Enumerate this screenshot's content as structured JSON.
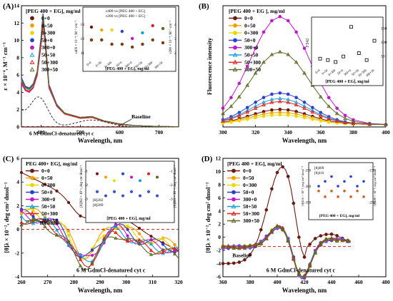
{
  "figure": {
    "panels": [
      "(A)",
      "(B)",
      "(C)",
      "(D)"
    ]
  },
  "series_styles": [
    {
      "name": "0+0",
      "color": "#6b1a10",
      "marker": "circle"
    },
    {
      "name": "0+50",
      "color": "#f5a000",
      "marker": "circle"
    },
    {
      "name": "0+300",
      "color": "#e8d800",
      "marker": "circle"
    },
    {
      "name": "50+0",
      "color": "#2a3fd0",
      "marker": "circle"
    },
    {
      "name": "300+0",
      "color": "#c018c8",
      "marker": "circle"
    },
    {
      "name": "50+50",
      "color": "#1aa0d8",
      "marker": "triangle"
    },
    {
      "name": "50+300",
      "color": "#e02020",
      "marker": "triangle"
    },
    {
      "name": "300+50",
      "color": "#5a6a22",
      "marker": "triangle"
    }
  ],
  "chart_data": [
    {
      "panel": "(A)",
      "type": "line",
      "legend_title": "[PEG 400 + EG], mg/ml",
      "xlabel": "Wavelength, nm",
      "ylabel": "ε × 10⁻⁴, M⁻¹ cm⁻¹",
      "xlim": [
        350,
        750
      ],
      "ylim": [
        0,
        14
      ],
      "xticks": [
        400,
        500,
        600,
        700
      ],
      "yticks": [
        0,
        2,
        4,
        6,
        8,
        10,
        12,
        14
      ],
      "annotations": [
        "6 M GdmCl-denatured cyt c",
        "Baseline"
      ],
      "x": [
        350,
        360,
        370,
        380,
        390,
        400,
        405,
        410,
        420,
        440,
        460,
        500,
        530,
        560,
        600,
        640,
        700,
        750
      ],
      "series": [
        {
          "name": "0+0",
          "values": [
            5.6,
            4.6,
            4.4,
            4.9,
            6.3,
            10.2,
            12.8,
            10.5,
            4.8,
            2.5,
            1.6,
            1.1,
            1.2,
            0.7,
            0.35,
            0.15,
            0.05,
            0.02
          ]
        },
        {
          "name": "0+50",
          "values": [
            5.5,
            4.5,
            4.3,
            4.8,
            6.2,
            10.0,
            12.6,
            10.3,
            4.7,
            2.5,
            1.6,
            1.1,
            1.2,
            0.7,
            0.35,
            0.15,
            0.05,
            0.02
          ]
        },
        {
          "name": "0+300",
          "values": [
            5.3,
            4.4,
            4.2,
            4.7,
            6.1,
            9.8,
            12.4,
            10.1,
            4.6,
            2.4,
            1.5,
            1.1,
            1.1,
            0.7,
            0.3,
            0.15,
            0.05,
            0.02
          ]
        },
        {
          "name": "50+0",
          "values": [
            5.7,
            4.7,
            4.5,
            5.0,
            6.4,
            10.4,
            13.1,
            10.6,
            4.9,
            2.6,
            1.6,
            1.1,
            1.2,
            0.7,
            0.35,
            0.15,
            0.05,
            0.02
          ]
        },
        {
          "name": "300+0",
          "values": [
            5.0,
            4.2,
            4.0,
            4.5,
            5.9,
            9.5,
            11.9,
            9.7,
            4.5,
            2.4,
            1.5,
            1.0,
            1.1,
            0.65,
            0.3,
            0.15,
            0.05,
            0.02
          ]
        },
        {
          "name": "50+50",
          "values": [
            5.4,
            4.5,
            4.3,
            4.8,
            6.2,
            9.9,
            12.5,
            10.2,
            4.7,
            2.5,
            1.6,
            1.1,
            1.2,
            0.7,
            0.35,
            0.15,
            0.05,
            0.02
          ]
        },
        {
          "name": "50+300",
          "values": [
            5.2,
            4.3,
            4.1,
            4.6,
            6.0,
            9.6,
            12.1,
            9.8,
            4.6,
            2.4,
            1.5,
            1.0,
            1.1,
            0.65,
            0.3,
            0.15,
            0.05,
            0.02
          ]
        },
        {
          "name": "300+50",
          "values": [
            5.5,
            4.6,
            4.4,
            4.9,
            6.3,
            10.1,
            12.7,
            10.4,
            4.8,
            2.5,
            1.6,
            1.1,
            1.2,
            0.7,
            0.35,
            0.15,
            0.05,
            0.02
          ]
        }
      ],
      "inset": {
        "xlabel": "[PEG 400 + EG], mg/ml",
        "left_label": "ε409 × 10⁻⁴, M⁻¹ cm⁻¹",
        "right_label": "ε280 × 10⁻⁴, M⁻¹ cm⁻¹",
        "legend": [
          "ε409 vs [PEG 400 + EG]",
          "ε280 vs [PEG 400 + EG]"
        ],
        "categories": [
          "0+0",
          "0+50",
          "0+300",
          "50+0",
          "300+0",
          "50+50",
          "50+300",
          "300+50"
        ],
        "left_ticks": [
          11,
          12,
          13
        ],
        "right_ticks": [
          2,
          3,
          4
        ],
        "left_values": [
          12.8,
          12.6,
          12.6,
          12.5,
          12.0,
          12.4,
          12.9,
          12.7
        ],
        "right_values": [
          2.9,
          2.9,
          2.6,
          2.6,
          2.4,
          2.6,
          2.9,
          2.7
        ]
      }
    },
    {
      "panel": "(B)",
      "type": "line",
      "legend_title": "[PEG 400 + EG ], mg/ml",
      "xlabel": "Wavelength, nm",
      "ylabel": "Fluorescence intensity",
      "xlim": [
        300,
        400
      ],
      "ylim": [
        0,
        200
      ],
      "xticks": [
        300,
        320,
        340,
        360,
        380,
        400
      ],
      "x": [
        300,
        305,
        310,
        315,
        320,
        325,
        330,
        335,
        340,
        345,
        350,
        355,
        360,
        365,
        370,
        375,
        380,
        390,
        400
      ],
      "series": [
        {
          "name": "0+0",
          "peak": 25
        },
        {
          "name": "0+50",
          "peak": 20
        },
        {
          "name": "0+300",
          "peak": 16
        },
        {
          "name": "50+0",
          "peak": 52
        },
        {
          "name": "300+0",
          "peak": 178
        },
        {
          "name": "50+50",
          "peak": 43
        },
        {
          "name": "50+300",
          "peak": 38
        },
        {
          "name": "300+50",
          "peak": 120
        }
      ],
      "inset": {
        "xlabel": "[PEG 400 + EG], mg/ml",
        "ylabel": "F342",
        "categories": [
          "0+0",
          "0+50",
          "0+300",
          "50+0",
          "300+0",
          "50+50",
          "50+300",
          "300+50"
        ],
        "values": [
          40,
          35,
          28,
          48,
          155,
          60,
          35,
          105
        ],
        "yticks": [
          50,
          100,
          150
        ]
      }
    },
    {
      "panel": "(C)",
      "type": "line",
      "legend_title": "PEG 400+ EG], mg/ml",
      "xlabel": "Wavelength, nm",
      "ylabel": "[θ]λ × 10⁻², deg cm² dmol⁻¹",
      "xlim": [
        260,
        320
      ],
      "ylim": [
        -4,
        6
      ],
      "xticks": [
        260,
        270,
        280,
        290,
        300,
        310,
        320
      ],
      "yticks": [
        -4,
        -2,
        0,
        2,
        4,
        6
      ],
      "annotations": [
        "Baseline",
        "6 M GdmCl-denatured cyt c"
      ],
      "inset": {
        "xlabel": "[PEG 400 + EG], mg/ml",
        "left_label": "[θ]282 × 10⁻², deg cm² dmol⁻¹",
        "right_label": "[θ]289 × 10⁻², deg cm² dmol⁻¹",
        "legend": [
          "[θ]282",
          "[θ]289"
        ],
        "left_ticks": [
          -1,
          -2,
          -3
        ],
        "right_ticks": [
          -1,
          -2,
          -3
        ]
      }
    },
    {
      "panel": "(D)",
      "type": "line",
      "legend_title": "[PEG 400 + EG], mg/ml",
      "xlabel": "Wavelength, nm",
      "ylabel": "[θ]λ × 10⁻², deg cm² dmol⁻¹",
      "xlim": [
        360,
        480
      ],
      "ylim": [
        -6,
        12
      ],
      "xticks": [
        360,
        380,
        400,
        420,
        440,
        460,
        480
      ],
      "yticks": [
        -6,
        -4,
        -2,
        0,
        2,
        4,
        6,
        8,
        10,
        12
      ],
      "annotations": [
        "Baseline",
        "6 M GdmCl-denatured cyt c"
      ],
      "inset": {
        "xlabel": "[PEG 400 + EG], mg/ml",
        "left_label": "[θ]416 × 10⁻², deg cm² dmol⁻¹",
        "right_label": "[θ]409 × 10⁻², deg cm² dmol⁻¹",
        "legend": [
          "[θ]409",
          "[θ]416"
        ],
        "left_ticks": [
          -250,
          -300,
          -350
        ],
        "right_ticks": [
          -150,
          -250
        ]
      }
    }
  ]
}
